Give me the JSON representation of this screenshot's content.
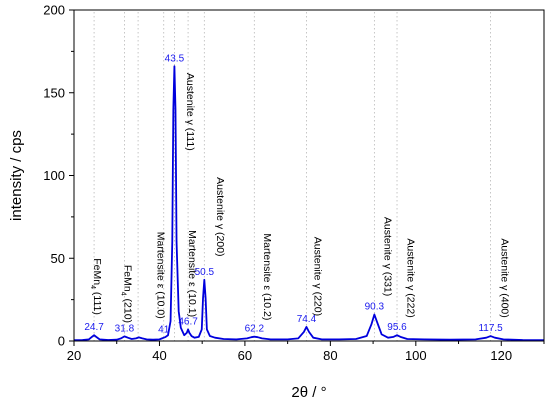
{
  "chart_data": {
    "type": "line",
    "xlabel": "2θ / °",
    "ylabel": "intensity / cps",
    "xlim": [
      20,
      130
    ],
    "ylim": [
      0,
      200
    ],
    "xticks": [
      20,
      40,
      60,
      80,
      100,
      120
    ],
    "yticks": [
      0,
      50,
      100,
      150,
      200
    ],
    "grid": "dotted vertical reference lines at peak positions",
    "line_color": "#0000dd",
    "label_color": "#1a1aee",
    "series": [
      {
        "values_description": "diffraction pattern",
        "x": [
          20,
          22,
          23.5,
          24.2,
          24.7,
          25.2,
          26,
          28,
          30,
          31,
          31.8,
          32.6,
          33.5,
          34.5,
          35.2,
          36,
          37,
          38.5,
          40,
          40.6,
          41,
          41.4,
          42,
          42.6,
          43,
          43.25,
          43.5,
          43.75,
          44,
          44.5,
          45,
          45.8,
          46.4,
          46.7,
          47,
          47.5,
          48.2,
          49.2,
          49.9,
          50.2,
          50.5,
          50.8,
          51.1,
          51.8,
          53,
          55,
          58,
          60.5,
          61.5,
          62.2,
          63,
          64,
          66,
          70,
          72.5,
          73.8,
          74.4,
          75,
          76,
          78,
          82,
          86,
          88.5,
          89.6,
          90.3,
          91,
          92,
          93.5,
          94.8,
          95.6,
          96.4,
          98,
          102,
          108,
          114,
          116.5,
          117.5,
          118.5,
          120.5,
          125,
          130
        ],
        "y": [
          0.5,
          0.6,
          1,
          2.5,
          3.5,
          2.5,
          1,
          0.6,
          0.8,
          1.6,
          2.8,
          2,
          1.2,
          1.6,
          2.2,
          1.6,
          1,
          0.8,
          1,
          1.6,
          2,
          2.4,
          3.5,
          12,
          60,
          140,
          166,
          140,
          60,
          18,
          8,
          3.5,
          5,
          7,
          5,
          3,
          2,
          2.5,
          7,
          26,
          37,
          26,
          7,
          3,
          2,
          1.2,
          1,
          1.6,
          2.3,
          2.6,
          2.3,
          1.6,
          1,
          1,
          1.6,
          5.5,
          8.5,
          5.5,
          2,
          1,
          1,
          1.2,
          3,
          10,
          16,
          11,
          4,
          2,
          2.5,
          3.5,
          2.5,
          1.2,
          1,
          0.8,
          1,
          2,
          3,
          2,
          1,
          0.6,
          0.5
        ]
      }
    ],
    "peak_labels": [
      {
        "x": 24.7,
        "y": 3.5,
        "text": "24.7"
      },
      {
        "x": 31.8,
        "y": 2.8,
        "text": "31.8"
      },
      {
        "x": 41,
        "y": 2.0,
        "text": "41"
      },
      {
        "x": 43.5,
        "y": 166,
        "text": "43.5"
      },
      {
        "x": 46.7,
        "y": 7,
        "text": "46.7"
      },
      {
        "x": 50.5,
        "y": 37,
        "text": "50.5"
      },
      {
        "x": 62.2,
        "y": 2.6,
        "text": "62.2"
      },
      {
        "x": 74.4,
        "y": 8.5,
        "text": "74.4"
      },
      {
        "x": 90.3,
        "y": 16,
        "text": "90.3"
      },
      {
        "x": 95.6,
        "y": 3.5,
        "text": "95.6"
      },
      {
        "x": 117.5,
        "y": 3,
        "text": "117.5"
      }
    ],
    "reference_lines_x": [
      24.7,
      31.8,
      35,
      41,
      43.5,
      46.7,
      50.5,
      62.2,
      74.4,
      90.3,
      95.6,
      117.5
    ],
    "annotations": [
      {
        "name": "anno-femn-111",
        "x": 24.7,
        "y_top": 50,
        "text": "FeMn",
        "sub": "4",
        "rest": " (111)"
      },
      {
        "name": "anno-femn-210",
        "x": 31.8,
        "y_top": 46,
        "text": "FeMn",
        "sub": "4",
        "rest": " (210)"
      },
      {
        "name": "anno-martensite-100",
        "x": 39.6,
        "y_top": 66,
        "text": "Martensite ε (10.0)",
        "sub": "",
        "rest": ""
      },
      {
        "name": "anno-austenite-111",
        "x": 46.5,
        "y_top": 162,
        "text": "Austenite  γ (111)",
        "sub": "",
        "rest": ""
      },
      {
        "name": "anno-martensite-101",
        "x": 46.9,
        "y_top": 67,
        "text": "Martensite ε (10.1)",
        "sub": "",
        "rest": ""
      },
      {
        "name": "anno-austenite-200",
        "x": 53.5,
        "y_top": 99,
        "text": "Austenite  γ (200)",
        "sub": "",
        "rest": ""
      },
      {
        "name": "anno-martensite-102",
        "x": 64.5,
        "y_top": 65,
        "text": "Martensite ε (10.2)",
        "sub": "",
        "rest": ""
      },
      {
        "name": "anno-austenite-220",
        "x": 76.3,
        "y_top": 63,
        "text": "Austenite  γ (220)",
        "sub": "",
        "rest": ""
      },
      {
        "name": "anno-austenite-331",
        "x": 92.7,
        "y_top": 75,
        "text": "Austenite  γ (331)",
        "sub": "",
        "rest": ""
      },
      {
        "name": "anno-austenite-222",
        "x": 98.0,
        "y_top": 62,
        "text": "Austenite  γ (222)",
        "sub": "",
        "rest": ""
      },
      {
        "name": "anno-austenite-400",
        "x": 120.0,
        "y_top": 62,
        "text": "Austenite  γ (400)",
        "sub": "",
        "rest": ""
      }
    ]
  }
}
